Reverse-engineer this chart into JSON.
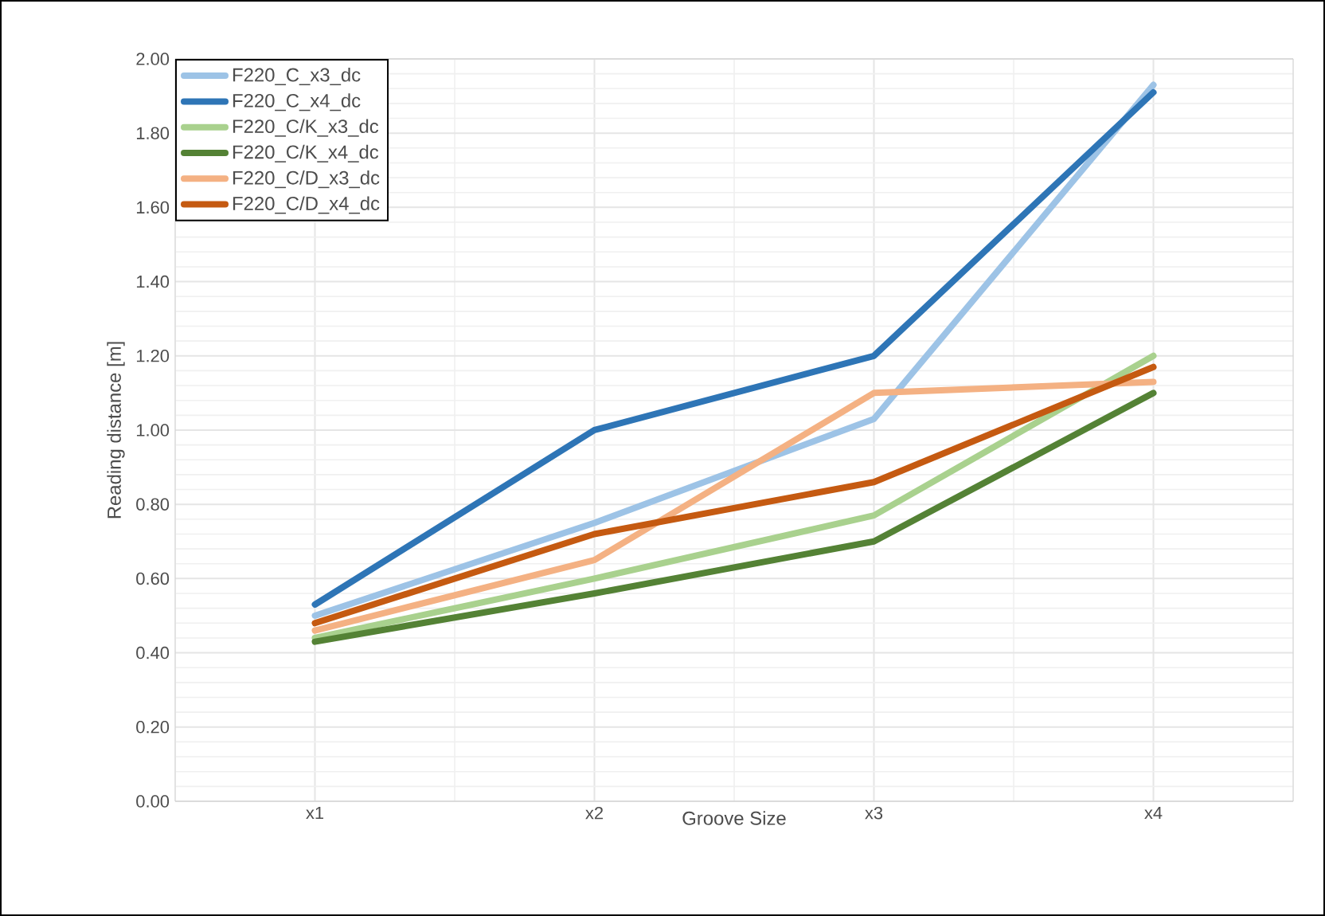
{
  "chart_data": {
    "type": "line",
    "xlabel": "Groove Size",
    "ylabel": "Reading distance [m]",
    "categories": [
      "x1",
      "x2",
      "x3",
      "x4"
    ],
    "ylim": [
      0,
      2.0
    ],
    "yticks": [
      {
        "value": 0,
        "label": "0.00"
      },
      {
        "value": 0.2,
        "label": "0.20"
      },
      {
        "value": 0.4,
        "label": "0.40"
      },
      {
        "value": 0.6,
        "label": "0.60"
      },
      {
        "value": 0.8,
        "label": "0.80"
      },
      {
        "value": 1.0,
        "label": "1.00"
      },
      {
        "value": 1.2,
        "label": "1.20"
      },
      {
        "value": 1.4,
        "label": "1.40"
      },
      {
        "value": 1.6,
        "label": "1.60"
      },
      {
        "value": 1.8,
        "label": "1.80"
      },
      {
        "value": 2.0,
        "label": "2.00"
      }
    ],
    "grid": true,
    "legend": "top left",
    "marker": "none",
    "line_style": "solid",
    "series": [
      {
        "name": "F220_C_x3_dc",
        "color": "#9dc3e6",
        "values": [
          0.5,
          0.75,
          1.03,
          1.93
        ]
      },
      {
        "name": "F220_C_x4_dc",
        "color": "#2e75b6",
        "values": [
          0.53,
          1.0,
          1.2,
          1.91
        ]
      },
      {
        "name": "F220_C/K_x3_dc",
        "color": "#a9d18e",
        "values": [
          0.44,
          0.6,
          0.77,
          1.2
        ]
      },
      {
        "name": "F220_C/K_x4_dc",
        "color": "#548235",
        "values": [
          0.43,
          0.56,
          0.7,
          1.1
        ]
      },
      {
        "name": "F220_C/D_x3_dc",
        "color": "#f4b183",
        "values": [
          0.46,
          0.65,
          1.1,
          1.13
        ]
      },
      {
        "name": "F220_C/D_x4_dc",
        "color": "#c55a11",
        "values": [
          0.48,
          0.72,
          0.86,
          1.17
        ]
      }
    ]
  }
}
